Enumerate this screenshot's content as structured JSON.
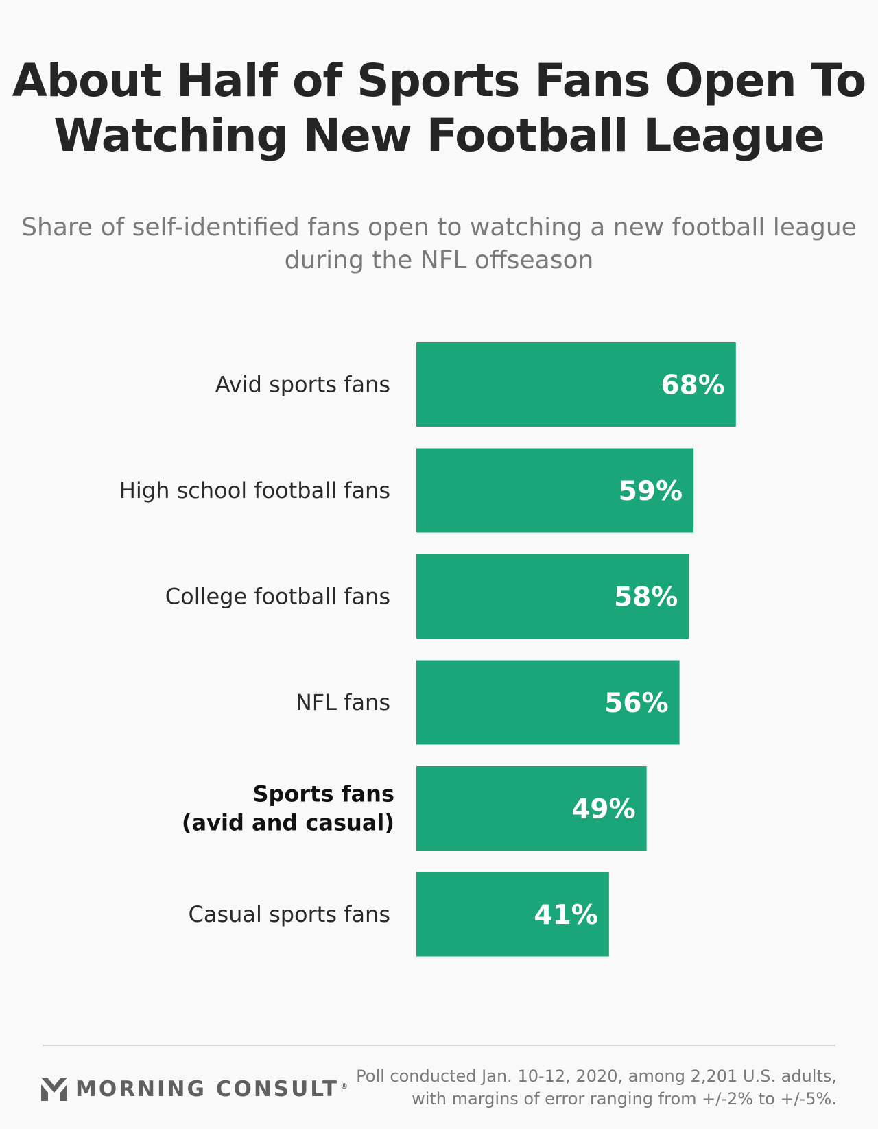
{
  "title": "About Half of Sports Fans Open To Watching New Football League",
  "subtitle": "Share of self-identified fans open to watching a new football league during the NFL offseason",
  "chart_data": {
    "type": "bar",
    "orientation": "horizontal",
    "categories": [
      [
        "Avid sports fans"
      ],
      [
        "High school football fans"
      ],
      [
        "College football fans"
      ],
      [
        "NFL fans"
      ],
      [
        "Sports fans",
        "(avid and casual)"
      ],
      [
        "Casual sports fans"
      ]
    ],
    "highlighted_category_index": 4,
    "values": [
      68,
      59,
      58,
      56,
      49,
      41
    ],
    "value_labels": [
      "68%",
      "59%",
      "58%",
      "56%",
      "49%",
      "41%"
    ],
    "unit": "%",
    "bar_color": "#1ba67a",
    "grid": false,
    "legend": "none"
  },
  "footer": {
    "brand": "MORNING CONSULT",
    "brand_mark": "®",
    "logo_icon": "morning-consult-m-icon",
    "source": "Poll conducted Jan. 10-12, 2020, among 2,201 U.S. adults, with margins of error ranging from +/-2% to +/-5%."
  }
}
